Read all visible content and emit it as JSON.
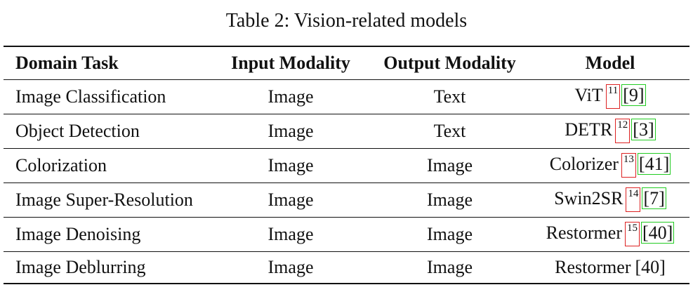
{
  "caption": "Table 2: Vision-related models",
  "columns": [
    "Domain Task",
    "Input Modality",
    "Output Modality",
    "Model"
  ],
  "rows": [
    {
      "task": "Image Classification",
      "input": "Image",
      "output": "Text",
      "model": "ViT",
      "footnote": "11",
      "citation": "9"
    },
    {
      "task": "Object Detection",
      "input": "Image",
      "output": "Text",
      "model": "DETR",
      "footnote": "12",
      "citation": "3"
    },
    {
      "task": "Colorization",
      "input": "Image",
      "output": "Image",
      "model": "Colorizer",
      "footnote": "13",
      "citation": "41"
    },
    {
      "task": "Image Super-Resolution",
      "input": "Image",
      "output": "Image",
      "model": "Swin2SR",
      "footnote": "14",
      "citation": "7"
    },
    {
      "task": "Image Denoising",
      "input": "Image",
      "output": "Image",
      "model": "Restormer",
      "footnote": "15",
      "citation": "40"
    },
    {
      "task": "Image Deblurring",
      "input": "Image",
      "output": "Image",
      "model": "Restormer",
      "footnote": "",
      "citation": "40"
    }
  ],
  "colors": {
    "footnote_box": "#dd2222",
    "citation_box": "#22cc22"
  }
}
